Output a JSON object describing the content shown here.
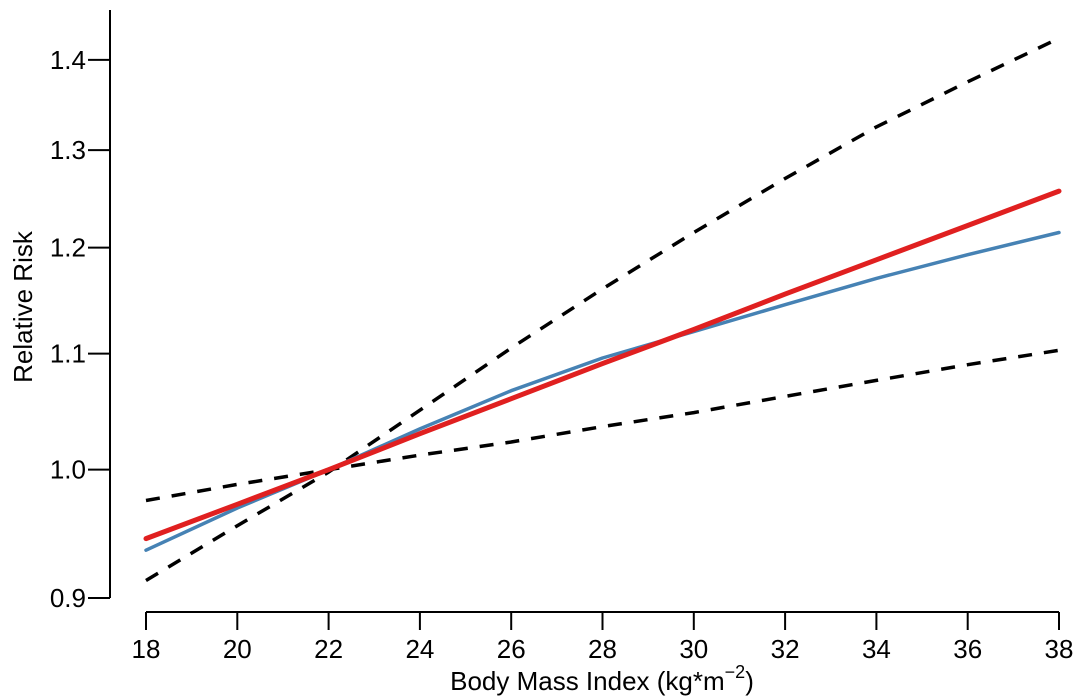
{
  "chart_data": {
    "type": "line",
    "xlabel": "Body Mass Index (kg*m",
    "xlabel_sup": "−2",
    "xlabel_close": ")",
    "ylabel": "Relative Risk",
    "xlim": [
      18,
      38
    ],
    "ylim": [
      0.9,
      1.43
    ],
    "y_scale": "log",
    "grid": false,
    "x_ticks": [
      18,
      20,
      22,
      24,
      26,
      28,
      30,
      32,
      34,
      36,
      38
    ],
    "y_ticks": [
      0.9,
      1.0,
      1.1,
      1.2,
      1.3,
      1.4
    ],
    "y_tick_labels": [
      "0.9",
      "1.0",
      "1.1",
      "1.2",
      "1.3",
      "1.4"
    ],
    "series": [
      {
        "role": "upper-ci",
        "color": "#000000",
        "dashed": true,
        "x": [
          18,
          20,
          22,
          24,
          26,
          28,
          30,
          32,
          34,
          36,
          38
        ],
        "y": [
          0.913,
          0.955,
          0.998,
          1.05,
          1.105,
          1.16,
          1.215,
          1.27,
          1.325,
          1.375,
          1.425
        ]
      },
      {
        "role": "lower-ci",
        "color": "#000000",
        "dashed": true,
        "x": [
          18,
          20,
          22,
          24,
          26,
          28,
          30,
          32,
          34,
          36,
          38
        ],
        "y": [
          0.975,
          0.988,
          1.0,
          1.012,
          1.023,
          1.036,
          1.048,
          1.062,
          1.076,
          1.09,
          1.103
        ]
      },
      {
        "role": "spline-fit",
        "color": "#4682b4",
        "dashed": false,
        "x": [
          18,
          20,
          22,
          24,
          26,
          28,
          30,
          32,
          34,
          36,
          38
        ],
        "y": [
          0.936,
          0.969,
          1.0,
          1.034,
          1.067,
          1.096,
          1.12,
          1.145,
          1.17,
          1.193,
          1.215
        ]
      },
      {
        "role": "linear-fit",
        "color": "#e02020",
        "dashed": false,
        "x": [
          18,
          20,
          22,
          24,
          26,
          28,
          30,
          32,
          34,
          36,
          38
        ],
        "y": [
          0.945,
          0.972,
          1.0,
          1.03,
          1.06,
          1.091,
          1.122,
          1.155,
          1.188,
          1.222,
          1.257
        ]
      }
    ]
  }
}
